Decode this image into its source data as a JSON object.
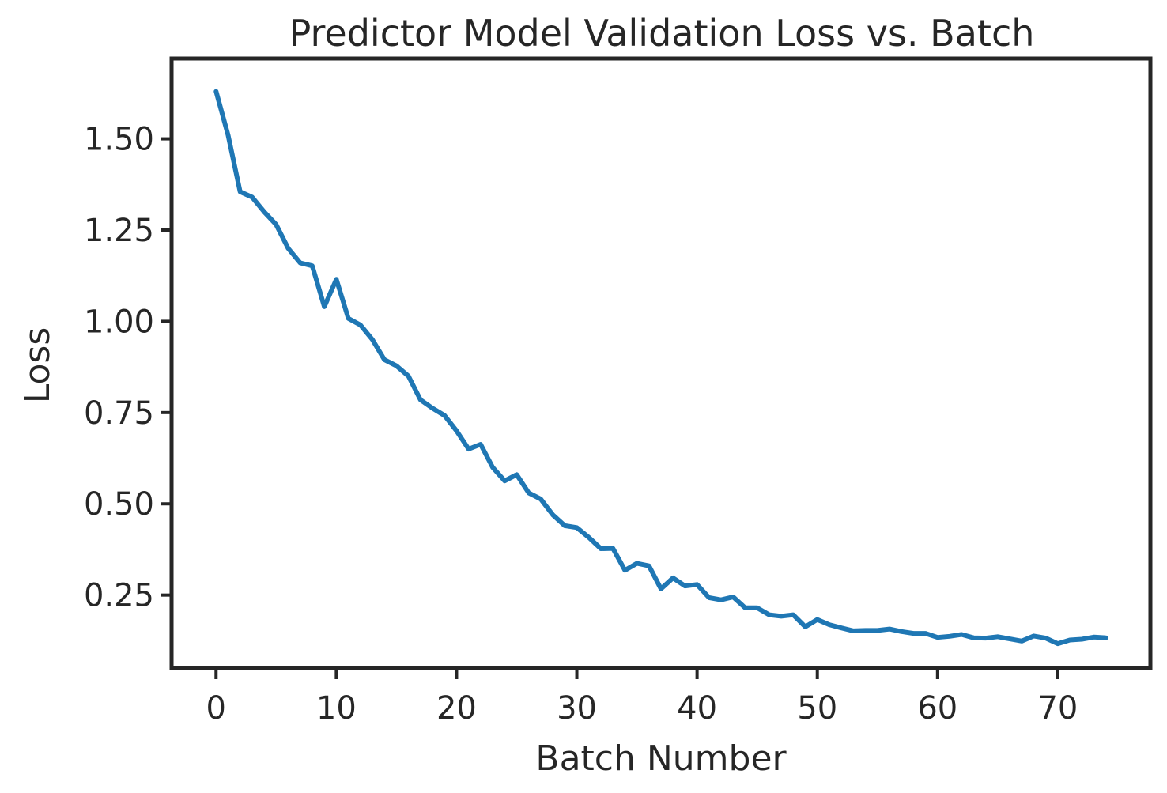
{
  "chart_data": {
    "type": "line",
    "title": "Predictor Model Validation Loss vs. Batch",
    "xlabel": "Batch Number",
    "ylabel": "Loss",
    "xlim": [
      -3.7,
      77.7
    ],
    "ylim": [
      0.05,
      1.72
    ],
    "xticks": [
      0,
      10,
      20,
      30,
      40,
      50,
      60,
      70
    ],
    "xtick_labels": [
      "0",
      "10",
      "20",
      "30",
      "40",
      "50",
      "60",
      "70"
    ],
    "yticks": [
      0.25,
      0.5,
      0.75,
      1.0,
      1.25,
      1.5
    ],
    "ytick_labels": [
      "0.25",
      "0.50",
      "0.75",
      "1.00",
      "1.25",
      "1.50"
    ],
    "grid": false,
    "legend": "none",
    "series": [
      {
        "color": "#1f77b4",
        "x": [
          0,
          1,
          2,
          3,
          4,
          5,
          6,
          7,
          8,
          9,
          10,
          11,
          12,
          13,
          14,
          15,
          16,
          17,
          18,
          19,
          20,
          21,
          22,
          23,
          24,
          25,
          26,
          27,
          28,
          29,
          30,
          31,
          32,
          33,
          34,
          35,
          36,
          37,
          38,
          39,
          40,
          41,
          42,
          43,
          44,
          45,
          46,
          47,
          48,
          49,
          50,
          51,
          52,
          53,
          54,
          55,
          56,
          57,
          58,
          59,
          60,
          61,
          62,
          63,
          64,
          65,
          66,
          67,
          68,
          69,
          70,
          71,
          72,
          73,
          74
        ],
        "y": [
          1.63,
          1.51,
          1.355,
          1.34,
          1.3,
          1.265,
          1.2,
          1.16,
          1.152,
          1.04,
          1.115,
          1.008,
          0.99,
          0.95,
          0.895,
          0.878,
          0.85,
          0.785,
          0.762,
          0.742,
          0.7,
          0.65,
          0.663,
          0.6,
          0.563,
          0.58,
          0.53,
          0.513,
          0.47,
          0.44,
          0.435,
          0.408,
          0.377,
          0.378,
          0.318,
          0.337,
          0.33,
          0.267,
          0.297,
          0.275,
          0.279,
          0.243,
          0.237,
          0.245,
          0.215,
          0.215,
          0.196,
          0.192,
          0.196,
          0.163,
          0.183,
          0.169,
          0.16,
          0.152,
          0.153,
          0.153,
          0.157,
          0.15,
          0.145,
          0.145,
          0.134,
          0.137,
          0.142,
          0.133,
          0.132,
          0.136,
          0.13,
          0.124,
          0.138,
          0.132,
          0.117,
          0.127,
          0.129,
          0.135,
          0.133
        ]
      }
    ]
  }
}
